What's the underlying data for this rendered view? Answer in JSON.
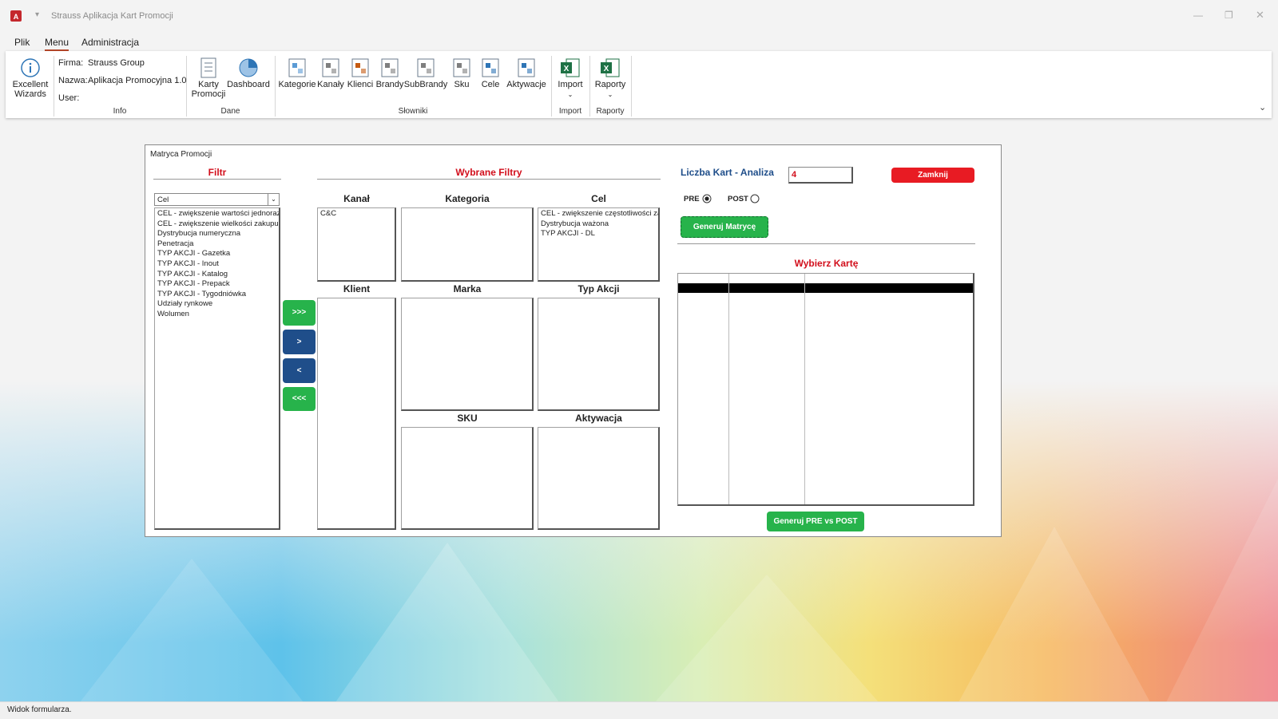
{
  "window": {
    "title": "Strauss Aplikacja Kart Promocji"
  },
  "menu_tabs": [
    "Plik",
    "Menu",
    "Administracja"
  ],
  "ribbon": {
    "info": {
      "button": "Excellent Wizards",
      "firma_label": "Firma:",
      "firma": "Strauss Group",
      "nazwa_label": "Nazwa:",
      "nazwa": "Aplikacja Promocyjna 1.0",
      "user_label": "User:",
      "group": "Info"
    },
    "dane": {
      "buttons": [
        "Karty Promocji",
        "Dashboard"
      ],
      "group": "Dane"
    },
    "slowniki": {
      "buttons": [
        "Kategorie",
        "Kanały",
        "Klienci",
        "Brandy",
        "SubBrandy",
        "Sku",
        "Cele",
        "Aktywacje"
      ],
      "group": "Słowniki"
    },
    "import": {
      "button": "Import",
      "group": "Import"
    },
    "raporty": {
      "button": "Raporty",
      "group": "Raporty"
    }
  },
  "form": {
    "title": "Matryca Promocji",
    "filter": {
      "title": "Filtr",
      "combo": "Cel",
      "items": [
        "CEL - zwiększenie wartości jednorazowego zakupu",
        "CEL - zwiększenie wielkości zakupu",
        "Dystrybucja numeryczna",
        "Penetracja",
        "TYP AKCJI - Gazetka",
        "TYP AKCJI - Inout",
        "TYP AKCJI - Katalog",
        "TYP AKCJI - Prepack",
        "TYP AKCJI - Tygodniówka",
        "Udziały rynkowe",
        "Wolumen"
      ]
    },
    "selected": {
      "title": "Wybrane Filtry",
      "panels": [
        {
          "label": "Kanał",
          "items": [
            "C&C"
          ]
        },
        {
          "label": "Kategoria",
          "items": []
        },
        {
          "label": "Cel",
          "items": [
            "CEL - zwiększenie częstotliwości zakupu",
            "Dystrybucja ważona",
            "TYP AKCJI - DL"
          ]
        },
        {
          "label": "Klient",
          "items": []
        },
        {
          "label": "Marka",
          "items": []
        },
        {
          "label": "Typ Akcji",
          "items": []
        },
        {
          "label": "SKU",
          "items": []
        },
        {
          "label": "Aktywacja",
          "items": []
        }
      ]
    },
    "move_buttons": [
      ">>>",
      ">",
      "<",
      "<<<"
    ],
    "count_label": "Liczba Kart - Analiza",
    "count": 4,
    "close": "Zamknij",
    "pre": "PRE",
    "post": "POST",
    "generate_matrix": "Generuj Matrycę",
    "pick_card": "Wybierz Kartę",
    "generate_pre_post": "Generuj PRE vs POST"
  },
  "status": "Widok formularza."
}
